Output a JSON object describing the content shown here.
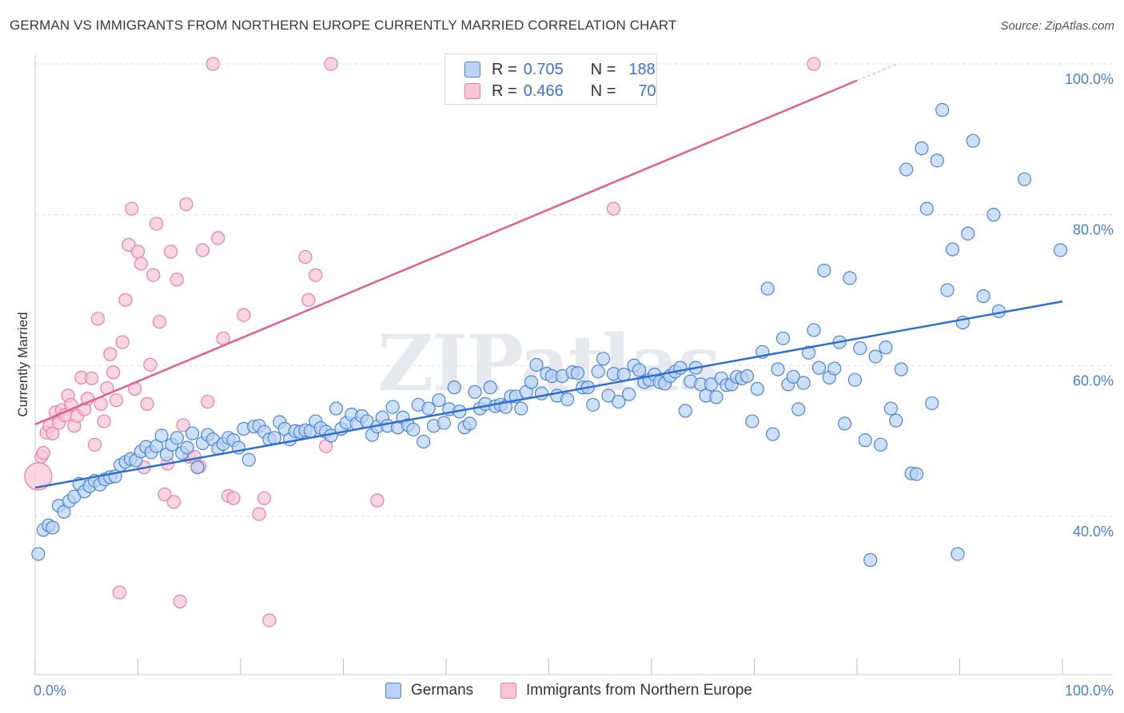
{
  "title": "GERMAN VS IMMIGRANTS FROM NORTHERN EUROPE CURRENTLY MARRIED CORRELATION CHART",
  "source": "Source: ZipAtlas.com",
  "watermark": "ZIPatlas",
  "colors": {
    "blue": "#4a86d8",
    "blue_fill": "#b9d2f5",
    "blue_line": "#2f6fcf",
    "pink": "#e77fa0",
    "pink_fill": "#f8c5d5",
    "pink_line": "#e0608a",
    "grid": "#dddddd",
    "axis_label": "#4a7fd6"
  },
  "legend": {
    "rows": [
      {
        "r_label": "R =",
        "r_value": "0.705",
        "n_label": "N =",
        "n_value": "188"
      },
      {
        "r_label": "R =",
        "r_value": "0.466",
        "n_label": "N =",
        "n_value": "70"
      }
    ]
  },
  "bottom_legend": {
    "items": [
      {
        "label": "Germans"
      },
      {
        "label": "Immigrants from Northern Europe"
      }
    ]
  },
  "chart_data": {
    "type": "scatter",
    "title": "GERMAN VS IMMIGRANTS FROM NORTHERN EUROPE CURRENTLY MARRIED CORRELATION CHART",
    "xlabel": "",
    "ylabel": "Currently Married",
    "xlim": [
      0,
      100
    ],
    "ylim": [
      19,
      100
    ],
    "x_tick_labels": [
      "0.0%",
      "100.0%"
    ],
    "y_ticks": [
      40,
      60,
      80,
      100
    ],
    "y_tick_labels": [
      "40.0%",
      "60.0%",
      "80.0%",
      "100.0%"
    ],
    "grid": true,
    "legend_position": "top-center",
    "series": [
      {
        "name": "Germans",
        "color": "#4a86d8",
        "trend": {
          "x": [
            0,
            100
          ],
          "y": [
            43.8,
            68.5
          ]
        },
        "points": [
          [
            0.3,
            35.0
          ],
          [
            0.8,
            38.2
          ],
          [
            1.3,
            38.8
          ],
          [
            1.7,
            38.5
          ],
          [
            2.3,
            41.4
          ],
          [
            2.8,
            40.6
          ],
          [
            3.3,
            42.0
          ],
          [
            3.8,
            42.6
          ],
          [
            4.3,
            44.3
          ],
          [
            4.8,
            43.3
          ],
          [
            5.3,
            44.0
          ],
          [
            5.8,
            44.7
          ],
          [
            6.3,
            44.2
          ],
          [
            6.8,
            44.9
          ],
          [
            7.3,
            45.2
          ],
          [
            7.8,
            45.3
          ],
          [
            8.3,
            46.8
          ],
          [
            8.8,
            47.2
          ],
          [
            9.3,
            47.6
          ],
          [
            9.8,
            47.4
          ],
          [
            10.3,
            48.6
          ],
          [
            10.8,
            49.2
          ],
          [
            11.3,
            48.5
          ],
          [
            11.8,
            49.3
          ],
          [
            12.3,
            50.7
          ],
          [
            12.8,
            48.2
          ],
          [
            13.3,
            49.5
          ],
          [
            13.8,
            50.4
          ],
          [
            14.3,
            48.4
          ],
          [
            14.8,
            49.1
          ],
          [
            15.3,
            51.0
          ],
          [
            15.8,
            46.5
          ],
          [
            16.3,
            49.7
          ],
          [
            16.8,
            50.8
          ],
          [
            17.3,
            50.2
          ],
          [
            17.8,
            49.0
          ],
          [
            18.3,
            49.6
          ],
          [
            18.8,
            50.4
          ],
          [
            19.3,
            50.1
          ],
          [
            19.8,
            49.1
          ],
          [
            20.3,
            51.6
          ],
          [
            20.8,
            47.5
          ],
          [
            21.3,
            51.9
          ],
          [
            21.8,
            52.0
          ],
          [
            22.3,
            51.2
          ],
          [
            22.8,
            50.2
          ],
          [
            23.3,
            50.4
          ],
          [
            23.8,
            52.5
          ],
          [
            24.3,
            51.6
          ],
          [
            24.8,
            50.2
          ],
          [
            25.3,
            51.3
          ],
          [
            25.8,
            51.2
          ],
          [
            26.3,
            51.4
          ],
          [
            26.8,
            51.3
          ],
          [
            27.3,
            52.6
          ],
          [
            27.8,
            51.7
          ],
          [
            28.3,
            51.2
          ],
          [
            28.8,
            50.7
          ],
          [
            29.3,
            54.3
          ],
          [
            29.8,
            51.6
          ],
          [
            30.3,
            52.4
          ],
          [
            30.8,
            53.5
          ],
          [
            31.3,
            52.3
          ],
          [
            31.8,
            53.3
          ],
          [
            32.3,
            52.6
          ],
          [
            32.8,
            50.8
          ],
          [
            33.3,
            51.9
          ],
          [
            33.8,
            53.1
          ],
          [
            34.3,
            52.0
          ],
          [
            34.8,
            54.5
          ],
          [
            35.3,
            51.8
          ],
          [
            35.8,
            53.1
          ],
          [
            36.3,
            52.1
          ],
          [
            36.8,
            51.5
          ],
          [
            37.3,
            54.8
          ],
          [
            37.8,
            49.9
          ],
          [
            38.3,
            54.3
          ],
          [
            38.8,
            52.0
          ],
          [
            39.3,
            55.4
          ],
          [
            39.8,
            52.4
          ],
          [
            40.3,
            54.2
          ],
          [
            40.8,
            57.1
          ],
          [
            41.3,
            53.9
          ],
          [
            41.8,
            51.8
          ],
          [
            42.3,
            52.3
          ],
          [
            42.8,
            56.5
          ],
          [
            43.3,
            54.3
          ],
          [
            43.8,
            54.9
          ],
          [
            44.3,
            57.1
          ],
          [
            44.8,
            54.6
          ],
          [
            45.3,
            54.8
          ],
          [
            45.8,
            54.5
          ],
          [
            46.3,
            55.9
          ],
          [
            46.8,
            55.9
          ],
          [
            47.3,
            54.3
          ],
          [
            47.8,
            56.5
          ],
          [
            48.3,
            57.8
          ],
          [
            48.8,
            60.1
          ],
          [
            49.3,
            56.3
          ],
          [
            49.8,
            58.9
          ],
          [
            50.3,
            58.6
          ],
          [
            50.8,
            56.0
          ],
          [
            51.3,
            58.6
          ],
          [
            51.8,
            55.5
          ],
          [
            52.3,
            59.1
          ],
          [
            52.8,
            59.0
          ],
          [
            53.3,
            57.1
          ],
          [
            53.8,
            57.1
          ],
          [
            54.3,
            54.8
          ],
          [
            54.8,
            59.2
          ],
          [
            55.3,
            60.9
          ],
          [
            55.8,
            56.0
          ],
          [
            56.3,
            58.9
          ],
          [
            56.8,
            55.2
          ],
          [
            57.3,
            58.8
          ],
          [
            57.8,
            56.2
          ],
          [
            58.3,
            60.0
          ],
          [
            58.8,
            59.4
          ],
          [
            59.3,
            57.8
          ],
          [
            59.8,
            58.1
          ],
          [
            60.3,
            58.8
          ],
          [
            60.8,
            57.8
          ],
          [
            61.3,
            57.6
          ],
          [
            61.8,
            58.6
          ],
          [
            62.3,
            59.2
          ],
          [
            62.8,
            59.7
          ],
          [
            63.3,
            54.0
          ],
          [
            63.8,
            57.9
          ],
          [
            64.3,
            59.7
          ],
          [
            64.8,
            57.5
          ],
          [
            65.3,
            56.0
          ],
          [
            65.8,
            57.5
          ],
          [
            66.3,
            55.8
          ],
          [
            66.8,
            58.3
          ],
          [
            67.3,
            57.4
          ],
          [
            67.8,
            57.5
          ],
          [
            68.3,
            58.5
          ],
          [
            68.8,
            58.3
          ],
          [
            69.3,
            58.6
          ],
          [
            69.8,
            52.6
          ],
          [
            70.3,
            56.9
          ],
          [
            70.8,
            61.8
          ],
          [
            71.3,
            70.2
          ],
          [
            71.8,
            50.9
          ],
          [
            72.3,
            59.5
          ],
          [
            72.8,
            63.6
          ],
          [
            73.3,
            57.5
          ],
          [
            73.8,
            58.5
          ],
          [
            74.3,
            54.2
          ],
          [
            74.8,
            57.7
          ],
          [
            75.3,
            61.7
          ],
          [
            75.8,
            64.7
          ],
          [
            76.3,
            59.7
          ],
          [
            76.8,
            72.6
          ],
          [
            77.3,
            58.4
          ],
          [
            77.8,
            59.6
          ],
          [
            78.3,
            63.1
          ],
          [
            78.8,
            52.3
          ],
          [
            79.3,
            71.6
          ],
          [
            79.8,
            58.1
          ],
          [
            80.3,
            62.3
          ],
          [
            80.8,
            50.1
          ],
          [
            81.3,
            34.2
          ],
          [
            81.8,
            61.2
          ],
          [
            82.3,
            49.5
          ],
          [
            82.8,
            62.4
          ],
          [
            83.3,
            54.3
          ],
          [
            83.8,
            52.7
          ],
          [
            84.3,
            59.5
          ],
          [
            84.8,
            86.0
          ],
          [
            85.3,
            45.7
          ],
          [
            85.8,
            45.6
          ],
          [
            86.3,
            88.8
          ],
          [
            86.8,
            80.8
          ],
          [
            87.3,
            55.0
          ],
          [
            87.8,
            87.2
          ],
          [
            88.3,
            93.9
          ],
          [
            88.8,
            70.0
          ],
          [
            89.3,
            75.4
          ],
          [
            89.8,
            35.0
          ],
          [
            90.3,
            65.7
          ],
          [
            90.8,
            77.5
          ],
          [
            91.3,
            89.8
          ],
          [
            92.3,
            69.2
          ],
          [
            93.3,
            80.0
          ],
          [
            93.8,
            67.2
          ],
          [
            96.3,
            84.7
          ],
          [
            99.8,
            75.3
          ]
        ]
      },
      {
        "name": "Immigrants from Northern Europe",
        "color": "#e77fa0",
        "trend": {
          "x": [
            0,
            80
          ],
          "y": [
            52.2,
            97.8
          ]
        },
        "points": [
          [
            0.3,
            45.3
          ],
          [
            0.6,
            47.9
          ],
          [
            0.8,
            48.4
          ],
          [
            1.1,
            51.1
          ],
          [
            1.4,
            52.0
          ],
          [
            1.7,
            51.0
          ],
          [
            2.0,
            53.8
          ],
          [
            2.3,
            52.4
          ],
          [
            2.6,
            54.1
          ],
          [
            2.9,
            53.4
          ],
          [
            3.2,
            56.0
          ],
          [
            3.5,
            54.8
          ],
          [
            3.8,
            52.0
          ],
          [
            4.1,
            53.3
          ],
          [
            4.5,
            58.4
          ],
          [
            4.8,
            54.2
          ],
          [
            5.1,
            55.6
          ],
          [
            5.5,
            58.3
          ],
          [
            5.8,
            49.5
          ],
          [
            6.1,
            66.2
          ],
          [
            6.4,
            54.9
          ],
          [
            6.7,
            52.6
          ],
          [
            7.0,
            57.0
          ],
          [
            7.3,
            61.5
          ],
          [
            7.6,
            59.1
          ],
          [
            7.9,
            55.4
          ],
          [
            8.2,
            29.9
          ],
          [
            8.5,
            63.1
          ],
          [
            8.8,
            68.7
          ],
          [
            9.1,
            76.0
          ],
          [
            9.4,
            80.8
          ],
          [
            9.7,
            56.9
          ],
          [
            10.0,
            75.1
          ],
          [
            10.3,
            73.5
          ],
          [
            10.6,
            46.5
          ],
          [
            10.9,
            54.9
          ],
          [
            11.2,
            60.1
          ],
          [
            11.5,
            72.0
          ],
          [
            11.8,
            78.8
          ],
          [
            12.1,
            65.8
          ],
          [
            12.6,
            42.9
          ],
          [
            12.9,
            47.0
          ],
          [
            13.2,
            75.1
          ],
          [
            13.5,
            41.9
          ],
          [
            13.8,
            71.4
          ],
          [
            14.1,
            28.7
          ],
          [
            14.4,
            52.1
          ],
          [
            14.7,
            81.4
          ],
          [
            15.0,
            47.9
          ],
          [
            15.5,
            47.9
          ],
          [
            16.0,
            46.6
          ],
          [
            16.3,
            75.3
          ],
          [
            16.8,
            55.2
          ],
          [
            17.3,
            100.0
          ],
          [
            17.8,
            76.9
          ],
          [
            18.3,
            63.6
          ],
          [
            18.8,
            42.7
          ],
          [
            19.3,
            42.4
          ],
          [
            20.3,
            66.7
          ],
          [
            21.8,
            40.3
          ],
          [
            22.3,
            42.4
          ],
          [
            22.8,
            26.2
          ],
          [
            26.3,
            74.4
          ],
          [
            26.6,
            68.7
          ],
          [
            27.3,
            72.0
          ],
          [
            28.3,
            49.3
          ],
          [
            28.8,
            100.0
          ],
          [
            33.3,
            42.1
          ],
          [
            56.3,
            80.8
          ],
          [
            75.8,
            100.0
          ]
        ]
      }
    ]
  }
}
